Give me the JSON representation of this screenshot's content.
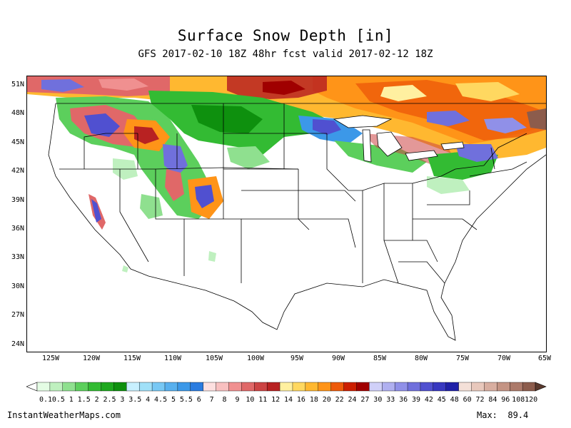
{
  "title": "Surface Snow Depth [in]",
  "subtitle": "GFS 2017-02-10 18Z 48hr fcst valid 2017-02-12 18Z",
  "map": {
    "lat_labels": [
      "51N",
      "48N",
      "45N",
      "42N",
      "39N",
      "36N",
      "33N",
      "30N",
      "27N",
      "24N"
    ],
    "lon_labels": [
      "125W",
      "120W",
      "115W",
      "110W",
      "105W",
      "100W",
      "95W",
      "90W",
      "85W",
      "80W",
      "75W",
      "70W",
      "65W"
    ]
  },
  "legend": {
    "labels": [
      "0.1",
      "0.5",
      "1",
      "1.5",
      "2",
      "2.5",
      "3",
      "3.5",
      "4",
      "4.5",
      "5",
      "5.5",
      "6",
      "7",
      "8",
      "9",
      "10",
      "11",
      "12",
      "14",
      "16",
      "18",
      "20",
      "22",
      "24",
      "27",
      "30",
      "33",
      "36",
      "39",
      "42",
      "45",
      "48",
      "60",
      "72",
      "84",
      "96",
      "108",
      "120"
    ],
    "colors": [
      "#e4fce4",
      "#bff0bf",
      "#8fe08f",
      "#5ccf5c",
      "#33bb33",
      "#1ea81e",
      "#0e900e",
      "#c8f0ff",
      "#a0e0f8",
      "#78c8f4",
      "#58b0ee",
      "#3c98e8",
      "#2a7ce0",
      "#fde0e0",
      "#f8c0c0",
      "#f09090",
      "#e06868",
      "#cc4444",
      "#b82222",
      "#fff0a0",
      "#ffd860",
      "#ffb830",
      "#ff9418",
      "#ee5a0a",
      "#cc1e00",
      "#a00000",
      "#d0d0f8",
      "#b0b0f0",
      "#9090e8",
      "#7070dc",
      "#5050d0",
      "#3838c0",
      "#2020a8",
      "#f4e0d8",
      "#e8c8bc",
      "#d8aea0",
      "#c49484",
      "#ac7a6a",
      "#8c5c4c"
    ]
  },
  "footer": {
    "site": "InstantWeatherMaps.com",
    "max": "Max:  89.4"
  },
  "colors": {
    "green_light": "#7fe07f",
    "green_mid": "#33bb33",
    "green_dark": "#0e900e",
    "blue": "#3c98e8",
    "purple": "#5050d0",
    "red": "#cc4444",
    "dark_red": "#a00000",
    "orange": "#ff9418",
    "yellow": "#ffd860"
  }
}
